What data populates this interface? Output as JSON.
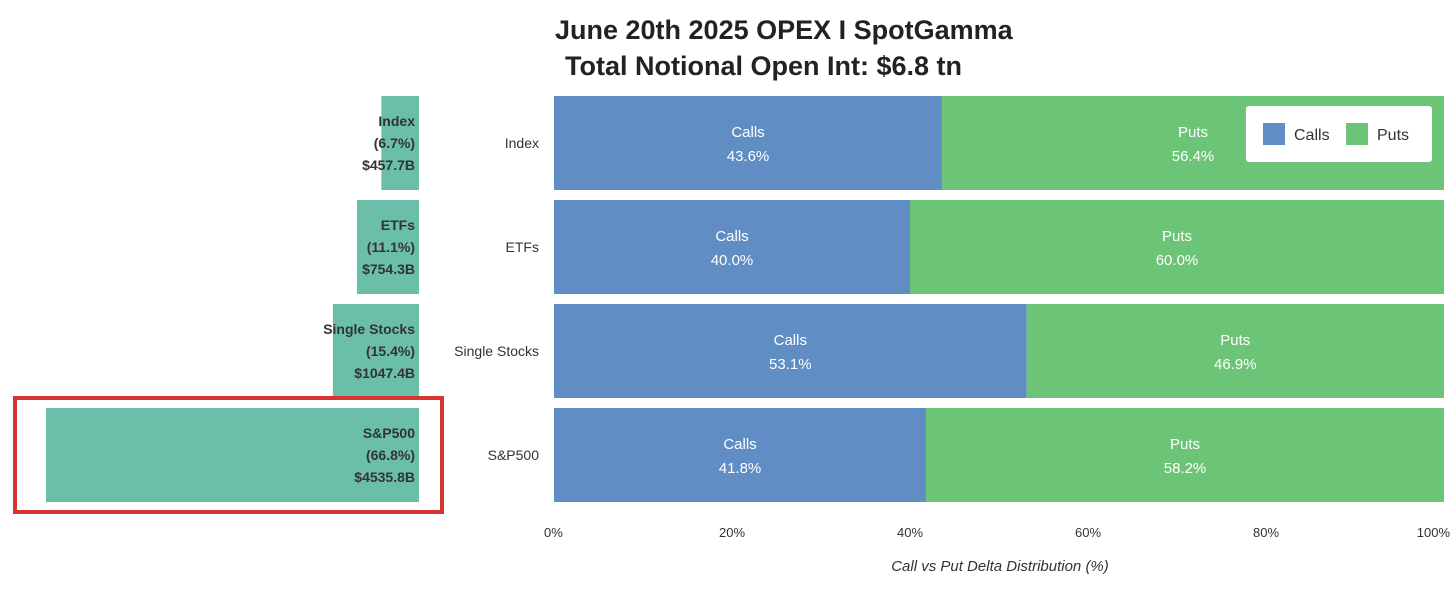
{
  "title": "June 20th 2025 OPEX I SpotGamma",
  "subtitle": "Total Notional Open Int: $6.8 tn",
  "colors": {
    "calls": "#5f8dc4",
    "puts": "#6cc577",
    "notional": "#6bbfa9",
    "highlight": "#d93333"
  },
  "chart_data": [
    {
      "type": "bar",
      "orientation": "horizontal",
      "title": "",
      "categories": [
        "Index",
        "ETFs",
        "Single Stocks",
        "S&P500"
      ],
      "values": [
        457.7,
        754.3,
        1047.4,
        4535.8
      ],
      "unit": "$B",
      "labels": [
        {
          "name": "Index",
          "share": "(6.7%)",
          "amount": "$457.7B"
        },
        {
          "name": "ETFs",
          "share": "(11.1%)",
          "amount": "$754.3B"
        },
        {
          "name": "Single Stocks",
          "share": "(15.4%)",
          "amount": "$1047.4B"
        },
        {
          "name": "S&P500",
          "share": "(66.8%)",
          "amount": "$4535.8B"
        }
      ],
      "highlighted": "S&P500",
      "xlim": [
        0,
        4535.8
      ]
    },
    {
      "type": "bar",
      "orientation": "horizontal",
      "stacked": true,
      "categories": [
        "Index",
        "ETFs",
        "Single Stocks",
        "S&P500"
      ],
      "series": [
        {
          "name": "Calls",
          "values": [
            43.6,
            40.0,
            53.1,
            41.8
          ]
        },
        {
          "name": "Puts",
          "values": [
            56.4,
            60.0,
            46.9,
            58.2
          ]
        }
      ],
      "xlabel": "Call vs Put Delta Distribution (%)",
      "ylabel": "",
      "xlim": [
        0,
        100
      ],
      "xticks": [
        0,
        20,
        40,
        60,
        80,
        100
      ],
      "xtick_labels": [
        "0%",
        "20%",
        "40%",
        "60%",
        "80%",
        "100%"
      ],
      "legend": {
        "position": "top-right",
        "entries": [
          "Calls",
          "Puts"
        ]
      },
      "grid": false
    }
  ]
}
